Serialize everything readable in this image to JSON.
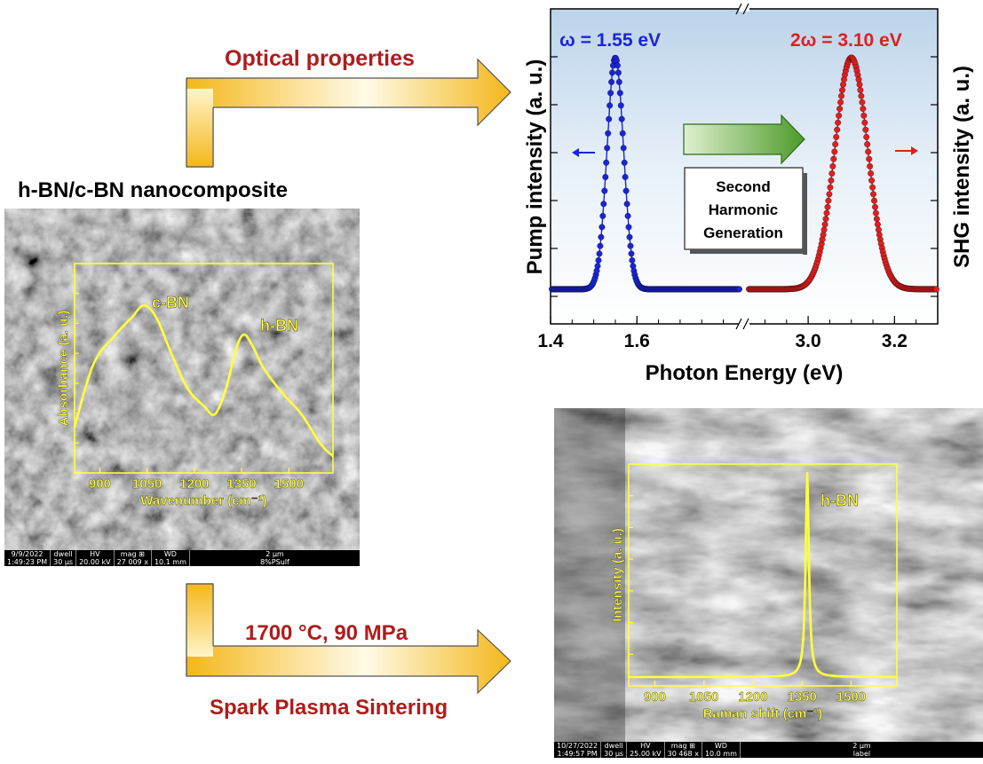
{
  "process_labels": {
    "optical": "Optical properties",
    "material": "h-BN/c-BN nanocomposite",
    "conditions": "1700 °C, 90 MPa",
    "method": "Spark Plasma Sintering"
  },
  "colors": {
    "arrow_gold": "#f4b71a",
    "red_text": "#b01c1c",
    "pump_blue": "#1a24d8",
    "shg_red": "#e11e1e",
    "overlay_yellow": "#ffff3c"
  },
  "sem_left_bar": {
    "date": "9/9/2022",
    "time": "1:49:23 PM",
    "dwell_label": "dwell",
    "dwell": "30 µs",
    "hv_label": "HV",
    "hv": "20.00 kV",
    "mag_label": "mag ⊞",
    "mag": "27 009 x",
    "wd_label": "WD",
    "wd": "10.1 mm",
    "scale": "2 µm",
    "sample": "8%PSulf"
  },
  "sem_right_bar": {
    "date": "10/27/2022",
    "time": "1:49:57 PM",
    "dwell_label": "dwell",
    "dwell": "30 µs",
    "hv_label": "HV",
    "hv": "25.00 kV",
    "mag_label": "mag ⊞",
    "mag": "30 468 x",
    "wd_label": "WD",
    "wd": "10.0 mm",
    "scale": "2 µm",
    "sample": "label"
  },
  "shg_box": [
    "Second",
    "Harmonic",
    "Generation"
  ],
  "chart_data": [
    {
      "type": "scatter",
      "title": "",
      "xlabel": "Photon Energy (eV)",
      "ylabel_left": "Pump intensity (a. u.)",
      "ylabel_right": "SHG intensity (a. u.)",
      "broken_x_axis": true,
      "segments": [
        {
          "xlim": [
            1.4,
            1.84
          ],
          "ticks": [
            "1.4",
            "1.6"
          ]
        },
        {
          "xlim": [
            2.86,
            3.3
          ],
          "ticks": [
            "3.0",
            "3.2"
          ]
        }
      ],
      "annotations": {
        "pump": "ω = 1.55 eV",
        "shg": "2ω = 3.10 eV"
      },
      "series": [
        {
          "name": "ω = 1.55 eV",
          "center": 1.55,
          "fwhm": 0.045,
          "baseline": 0.03,
          "color": "#1a24d8"
        },
        {
          "name": "2ω = 3.10 eV",
          "center": 3.1,
          "fwhm": 0.09,
          "baseline": 0.03,
          "color": "#e11e1e"
        }
      ],
      "grid": false,
      "legend": "none"
    },
    {
      "type": "line",
      "xlabel": "Wavenumber (cm⁻¹)",
      "ylabel": "Absorbance (a. u.)",
      "xlim": [
        820,
        1640
      ],
      "xticks": [
        "900",
        "1050",
        "1200",
        "1350",
        "1500"
      ],
      "x": [
        820,
        880,
        950,
        1000,
        1040,
        1080,
        1130,
        1180,
        1230,
        1265,
        1300,
        1330,
        1355,
        1380,
        1420,
        1480,
        1540,
        1600,
        1640
      ],
      "y": [
        0.22,
        0.52,
        0.66,
        0.74,
        0.8,
        0.74,
        0.56,
        0.4,
        0.32,
        0.28,
        0.4,
        0.58,
        0.66,
        0.62,
        0.5,
        0.38,
        0.28,
        0.14,
        0.08
      ],
      "peak_labels": [
        "c-BN",
        "h-BN"
      ],
      "color": "#ffff3c"
    },
    {
      "type": "line",
      "xlabel": "Raman shift (cm⁻¹)",
      "ylabel": "Intensity (a. u.)",
      "xlim": [
        820,
        1640
      ],
      "xticks": [
        "900",
        "1050",
        "1200",
        "1350",
        "1500"
      ],
      "peak_center": 1366,
      "peak_fwhm": 12,
      "baseline": 0.04,
      "peak_label": "h-BN",
      "color": "#ffff3c"
    }
  ]
}
